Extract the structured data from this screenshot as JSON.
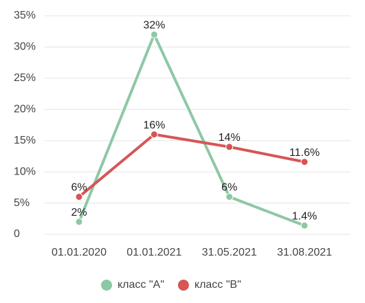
{
  "chart_data": {
    "type": "line",
    "categories": [
      "01.01.2020",
      "01.01.2021",
      "31.05.2021",
      "31.08.2021"
    ],
    "series": [
      {
        "name": "класс \"A\"",
        "color": "#8dc8a4",
        "values": [
          2,
          32,
          6,
          1.4
        ],
        "value_labels": [
          "2%",
          "32%",
          "6%",
          "1.4%"
        ]
      },
      {
        "name": "класс \"B\"",
        "color": "#d75556",
        "values": [
          6,
          16,
          14,
          11.6
        ],
        "value_labels": [
          "6%",
          "16%",
          "14%",
          "11.6%"
        ]
      }
    ],
    "ylim": [
      0,
      35
    ],
    "yticks": [
      0,
      {
        "value": 5,
        "label": "5%"
      },
      {
        "value": 10,
        "label": "10%"
      },
      {
        "value": 15,
        "label": "15%"
      },
      {
        "value": 20,
        "label": "20%"
      },
      {
        "value": 25,
        "label": "25%"
      },
      {
        "value": 30,
        "label": "30%"
      },
      {
        "value": 35,
        "label": "35%"
      }
    ],
    "grid": true,
    "legend": "bottom"
  }
}
